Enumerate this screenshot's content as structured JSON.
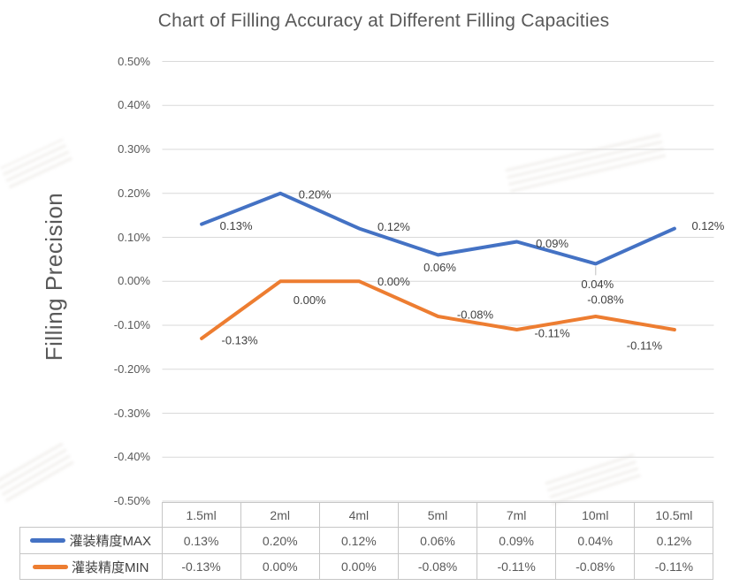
{
  "title": "Chart of Filling Accuracy at Different Filling Capacities",
  "y_axis": {
    "title": "Filling Precision",
    "tick_labels": [
      "0.50%",
      "0.40%",
      "0.30%",
      "0.20%",
      "0.10%",
      "0.00%",
      "-0.10%",
      "-0.20%",
      "-0.30%",
      "-0.40%",
      "-0.50%"
    ]
  },
  "chart_data": {
    "type": "line",
    "title": "Chart of Filling Accuracy at Different Filling Capacities",
    "xlabel": "",
    "ylabel": "Filling Precision",
    "ylim": [
      -0.5,
      0.5
    ],
    "ytick_step": 0.1,
    "grid": true,
    "legend_position": "table-left",
    "categories": [
      "1.5ml",
      "2ml",
      "4ml",
      "5ml",
      "7ml",
      "10ml",
      "10.5ml"
    ],
    "series": [
      {
        "name": "灌装精度MAX",
        "color": "#4472C4",
        "values": [
          0.13,
          0.2,
          0.12,
          0.06,
          0.09,
          0.04,
          0.12
        ],
        "labels": [
          "0.13%",
          "0.20%",
          "0.12%",
          "0.06%",
          "0.09%",
          "0.04%",
          "0.12%"
        ],
        "label_offsets": [
          [
            39,
            2
          ],
          [
            39,
            1
          ],
          [
            39,
            -2
          ],
          [
            2,
            14
          ],
          [
            40,
            2
          ],
          [
            2,
            23
          ],
          [
            38,
            -3
          ]
        ]
      },
      {
        "name": "灌装精度MIN",
        "color": "#ED7D31",
        "values": [
          -0.13,
          0.0,
          0.0,
          -0.08,
          -0.11,
          -0.08,
          -0.11
        ],
        "labels": [
          "-0.13%",
          "0.00%",
          "0.00%",
          "-0.08%",
          "-0.11%",
          "-0.08%",
          "-0.11%"
        ],
        "label_offsets": [
          [
            43,
            2
          ],
          [
            33,
            21
          ],
          [
            39,
            0
          ],
          [
            42,
            -2
          ],
          [
            40,
            4
          ],
          [
            11,
            -19
          ],
          [
            -34,
            18
          ]
        ]
      }
    ],
    "leader_lines": [
      {
        "series": 0,
        "point": 5
      }
    ],
    "gridline_color": "#D9D9D9",
    "label_color": "#3f3f3f"
  },
  "table": {
    "headers": [
      "1.5ml",
      "2ml",
      "4ml",
      "5ml",
      "7ml",
      "10ml",
      "10.5ml"
    ],
    "rows": [
      {
        "legend": "灌装精度MAX",
        "color": "#4472C4",
        "values": [
          "0.13%",
          "0.20%",
          "0.12%",
          "0.06%",
          "0.09%",
          "0.04%",
          "0.12%"
        ]
      },
      {
        "legend": "灌装精度MIN",
        "color": "#ED7D31",
        "values": [
          "-0.13%",
          "0.00%",
          "0.00%",
          "-0.08%",
          "-0.11%",
          "-0.08%",
          "-0.11%"
        ]
      }
    ]
  }
}
